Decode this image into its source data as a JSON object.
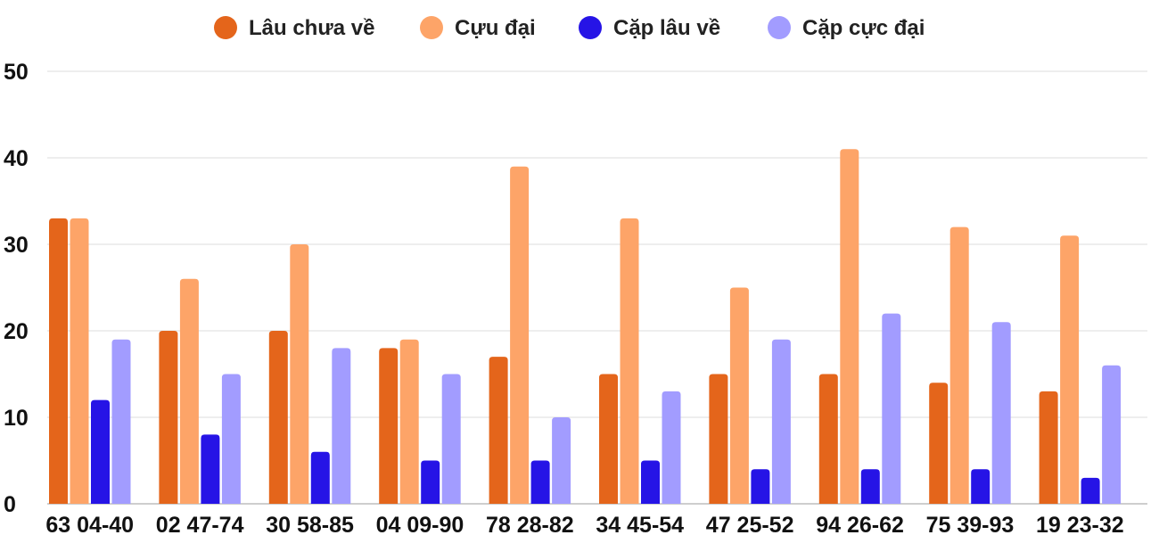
{
  "chart_data": {
    "type": "bar",
    "categories": [
      "63 04-40",
      "02 47-74",
      "30 58-85",
      "04 09-90",
      "78 28-82",
      "34 45-54",
      "47 25-52",
      "94 26-62",
      "75 39-93",
      "19 23-32"
    ],
    "series": [
      {
        "name": "Lâu chưa về",
        "color": "#e4651b",
        "values": [
          33,
          20,
          20,
          18,
          17,
          15,
          15,
          15,
          14,
          13
        ]
      },
      {
        "name": "Cựu đại",
        "color": "#fda468",
        "values": [
          33,
          26,
          30,
          19,
          39,
          33,
          25,
          41,
          32,
          31
        ]
      },
      {
        "name": "Cặp lâu về",
        "color": "#2614e6",
        "values": [
          12,
          8,
          6,
          5,
          5,
          5,
          4,
          4,
          4,
          3
        ]
      },
      {
        "name": "Cặp cực đại",
        "color": "#a29cff",
        "values": [
          19,
          15,
          18,
          15,
          10,
          13,
          19,
          22,
          21,
          16
        ]
      }
    ],
    "ylim": [
      0,
      50
    ],
    "yticks": [
      "0",
      "10",
      "20",
      "30",
      "40",
      "50"
    ],
    "grid": true,
    "legend": "top-center"
  }
}
